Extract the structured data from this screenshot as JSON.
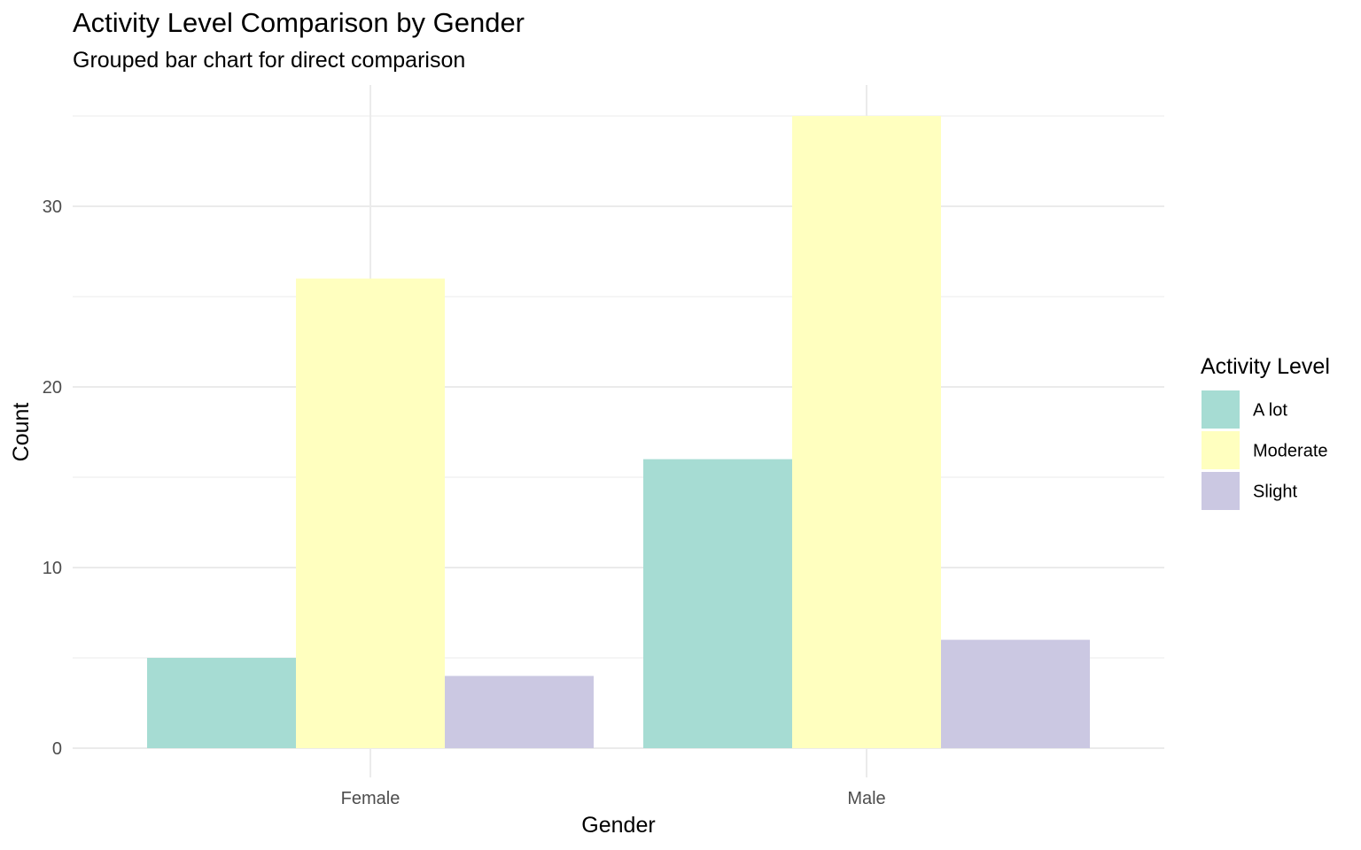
{
  "chart_data": {
    "type": "bar",
    "title": "Activity Level Comparison by Gender",
    "subtitle": "Grouped bar chart for direct comparison",
    "xlabel": "Gender",
    "ylabel": "Count",
    "categories": [
      "Female",
      "Male"
    ],
    "series": [
      {
        "name": "A lot",
        "values": [
          5,
          16
        ],
        "color": "#a6dcd3"
      },
      {
        "name": "Moderate",
        "values": [
          26,
          35
        ],
        "color": "#ffffbf"
      },
      {
        "name": "Slight",
        "values": [
          4,
          6
        ],
        "color": "#cbc8e2"
      }
    ],
    "ylim": [
      0,
      36.75
    ],
    "yticks": [
      0,
      10,
      20,
      30
    ],
    "grid": true,
    "legend": {
      "title": "Activity Level",
      "position": "right"
    }
  }
}
